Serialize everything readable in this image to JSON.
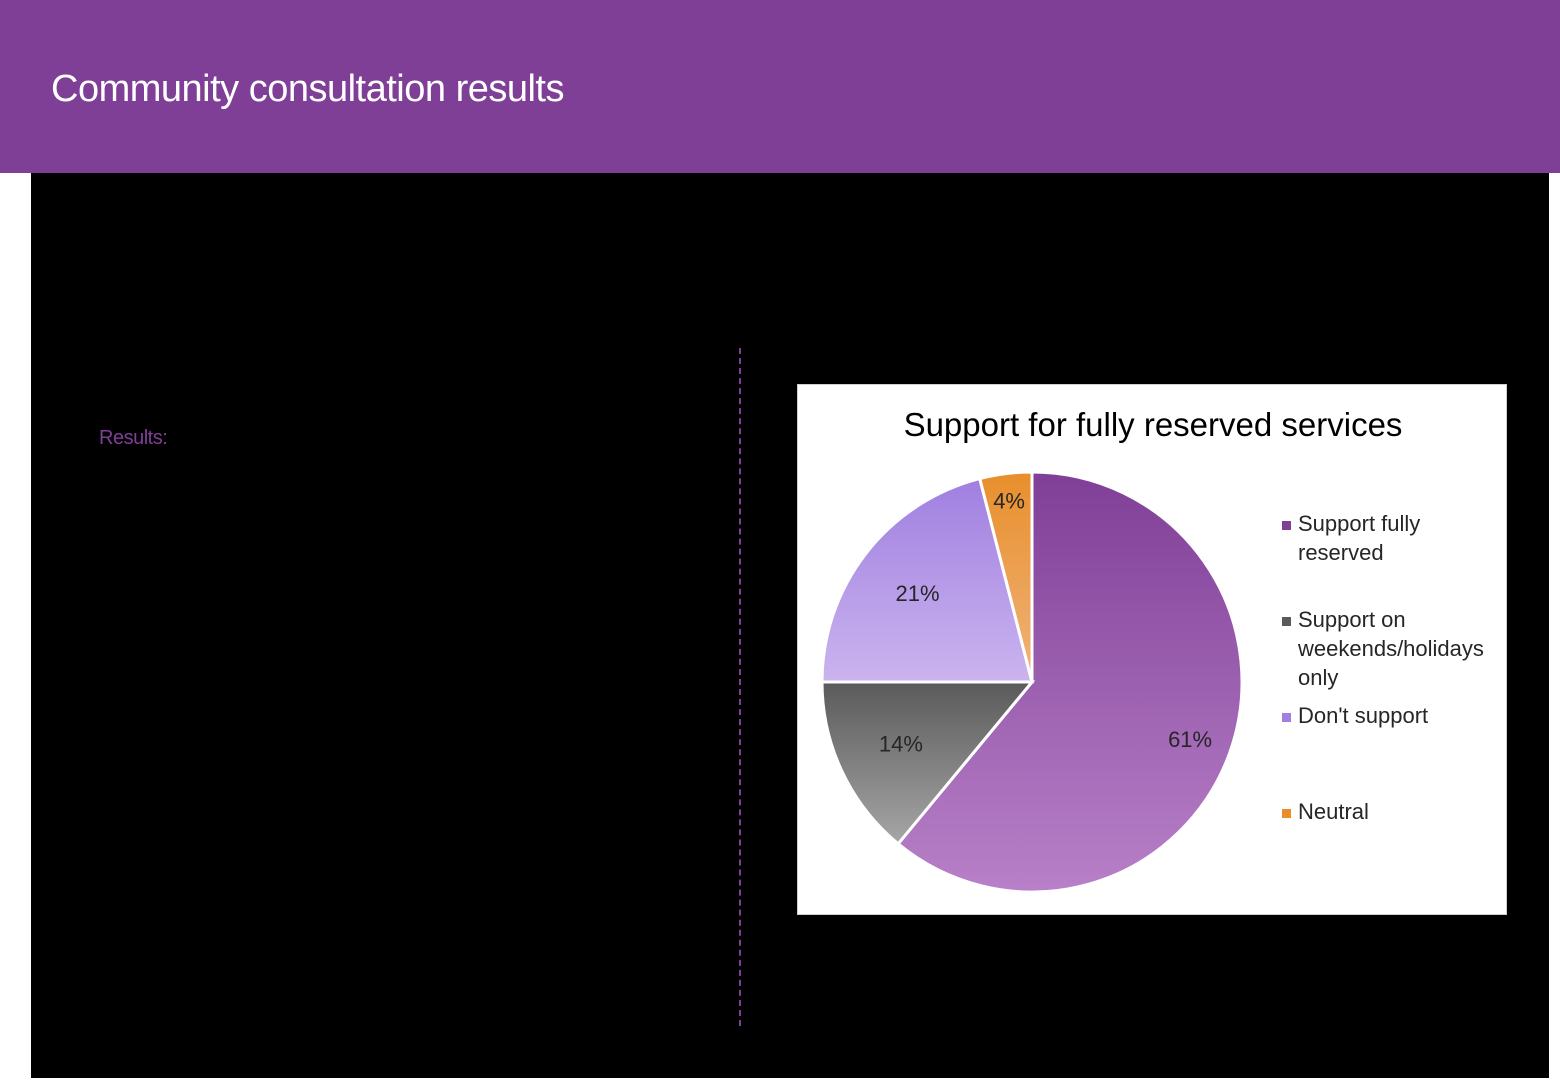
{
  "header": {
    "title": "Community consultation results",
    "background_color": "#7f3f97"
  },
  "main": {
    "results_label": "Results:"
  },
  "chart_data": {
    "type": "pie",
    "title": "Support for fully reserved services",
    "legend_position": "right",
    "slices": [
      {
        "label": "Support fully reserved",
        "value": 61,
        "data_label": "61%",
        "color_top": "#7f3f97",
        "color_bottom": "#b880c8"
      },
      {
        "label": "Support on weekends/holidays only",
        "value": 14,
        "data_label": "14%",
        "color_top": "#5a5a5a",
        "color_bottom": "#a6a6a6"
      },
      {
        "label": "Don't support",
        "value": 21,
        "data_label": "21%",
        "color_top": "#a07fe0",
        "color_bottom": "#cbb4ef"
      },
      {
        "label": "Neutral",
        "value": 4,
        "data_label": "4%",
        "color_top": "#e88f2c",
        "color_bottom": "#f0b37a"
      }
    ],
    "legend_entries": [
      {
        "lines": [
          "Support fully",
          "reserved"
        ],
        "color": "#7f3f97"
      },
      {
        "lines": [
          "Support on",
          "weekends/holidays",
          "only"
        ],
        "color": "#5a5a5a"
      },
      {
        "lines": [
          "Don't support"
        ],
        "color": "#a07fe0"
      },
      {
        "lines": [
          "Neutral"
        ],
        "color": "#e88f2c"
      }
    ]
  }
}
